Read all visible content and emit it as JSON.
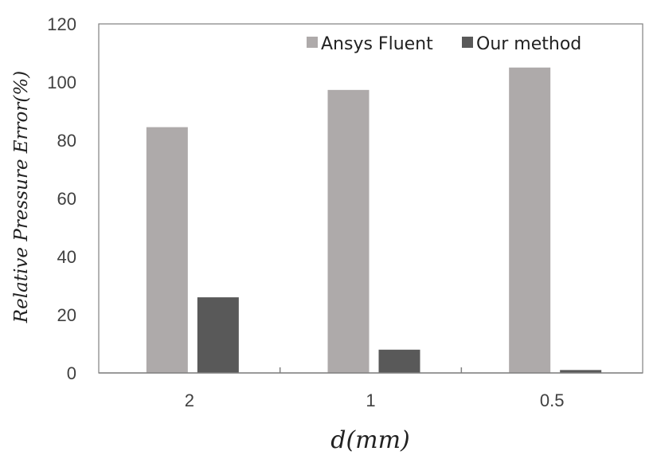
{
  "chart_data": {
    "type": "bar",
    "title": "",
    "xlabel": "d(mm)",
    "ylabel": "Relative Pressure Error(%)",
    "categories": [
      "2",
      "1",
      "0.5"
    ],
    "ylim": [
      0,
      120
    ],
    "yticks": [
      0,
      20,
      40,
      60,
      80,
      100,
      120
    ],
    "grid": false,
    "legend_position": "top-right",
    "series": [
      {
        "name": "Ansys Fluent",
        "color": "#aeaaaa",
        "values": [
          84.5,
          97.3,
          105
        ]
      },
      {
        "name": "Our method",
        "color": "#595959",
        "values": [
          26,
          8,
          1
        ]
      }
    ]
  }
}
